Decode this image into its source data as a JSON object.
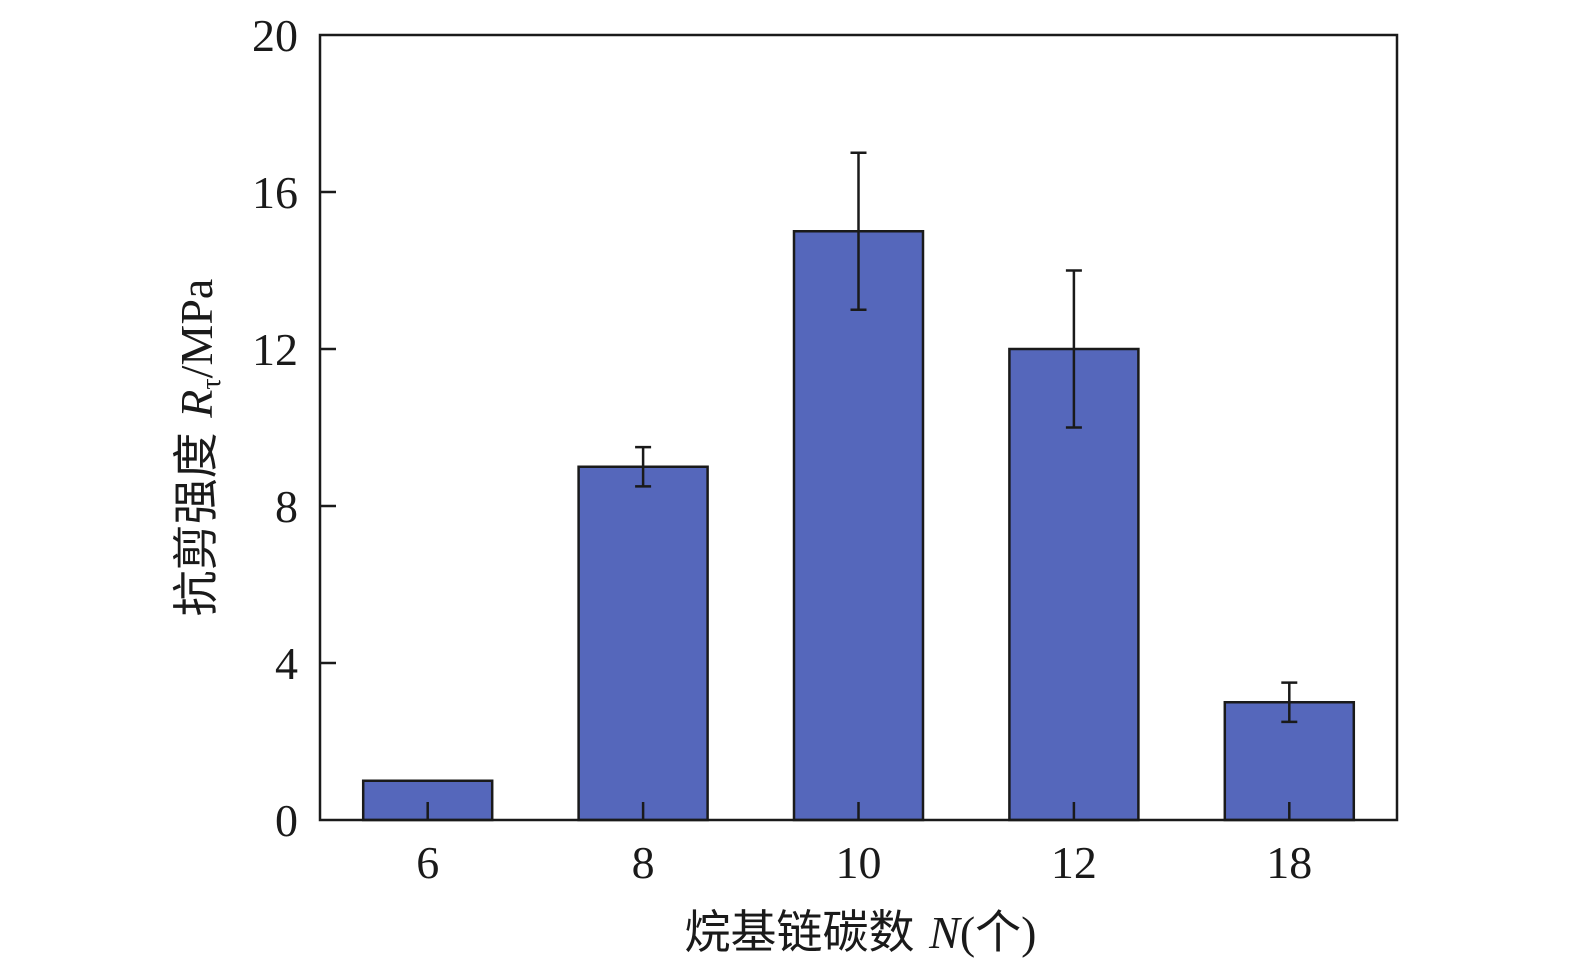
{
  "chart_data": {
    "type": "bar",
    "categories": [
      "6",
      "8",
      "10",
      "12",
      "18"
    ],
    "values": [
      1,
      9,
      15,
      12,
      3
    ],
    "error": [
      0,
      0.5,
      2,
      2,
      0.5
    ],
    "ylim": [
      0,
      20
    ],
    "yticks": [
      0,
      4,
      8,
      12,
      16,
      20
    ],
    "xlabel": {
      "prefix": "烷基链碳数 ",
      "symbol": "N",
      "suffix": "(个)"
    },
    "ylabel": {
      "prefix": "抗剪强度  ",
      "symbol": "R",
      "subscript": "τ",
      "suffix": "/MPa"
    },
    "bar_color": "#5567bb",
    "grid": false,
    "legend": "none"
  }
}
